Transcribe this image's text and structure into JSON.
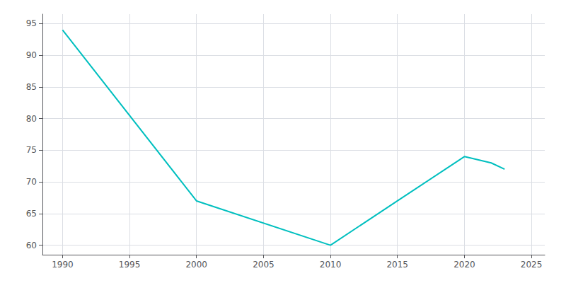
{
  "chart_data": {
    "type": "line",
    "x": [
      1990,
      2000,
      2010,
      2015,
      2020,
      2022,
      2023
    ],
    "values": [
      94,
      67,
      60,
      67,
      74,
      73,
      72
    ],
    "color": "#00BFBF",
    "xlim": [
      1988.5,
      2026
    ],
    "ylim": [
      58.5,
      96.5
    ],
    "xticks": [
      1990,
      1995,
      2000,
      2005,
      2010,
      2015,
      2020,
      2025
    ],
    "yticks": [
      60,
      65,
      70,
      75,
      80,
      85,
      90,
      95
    ],
    "grid": true
  }
}
